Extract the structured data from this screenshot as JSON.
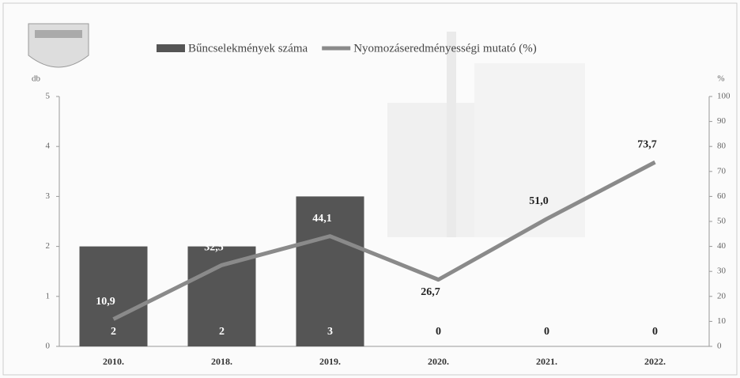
{
  "chart_data": {
    "type": "bar-line",
    "categories": [
      "2010.",
      "2018.",
      "2019.",
      "2020.",
      "2021.",
      "2022."
    ],
    "series": [
      {
        "name": "Bűncselekmények száma",
        "type": "bar",
        "color": "#555555",
        "values": [
          2,
          2,
          3,
          0,
          0,
          0
        ]
      },
      {
        "name": "Nyomozáseredményességi mutató (%)",
        "type": "line",
        "axis": "y2",
        "color": "#8a8a8a",
        "values": [
          10.9,
          32.5,
          44.1,
          26.7,
          51.0,
          73.7
        ],
        "value_labels": [
          "10,9",
          "32,5",
          "44,1",
          "26,7",
          "51,0",
          "73,7"
        ]
      }
    ],
    "y_label": "db",
    "y2_label": "%",
    "ylim": [
      0,
      5
    ],
    "yticks": [
      0,
      1,
      2,
      3,
      4,
      5
    ],
    "y2lim": [
      0,
      100
    ],
    "y2ticks": [
      0,
      10,
      20,
      30,
      40,
      50,
      60,
      70,
      80,
      90,
      100
    ],
    "legend": "top"
  }
}
